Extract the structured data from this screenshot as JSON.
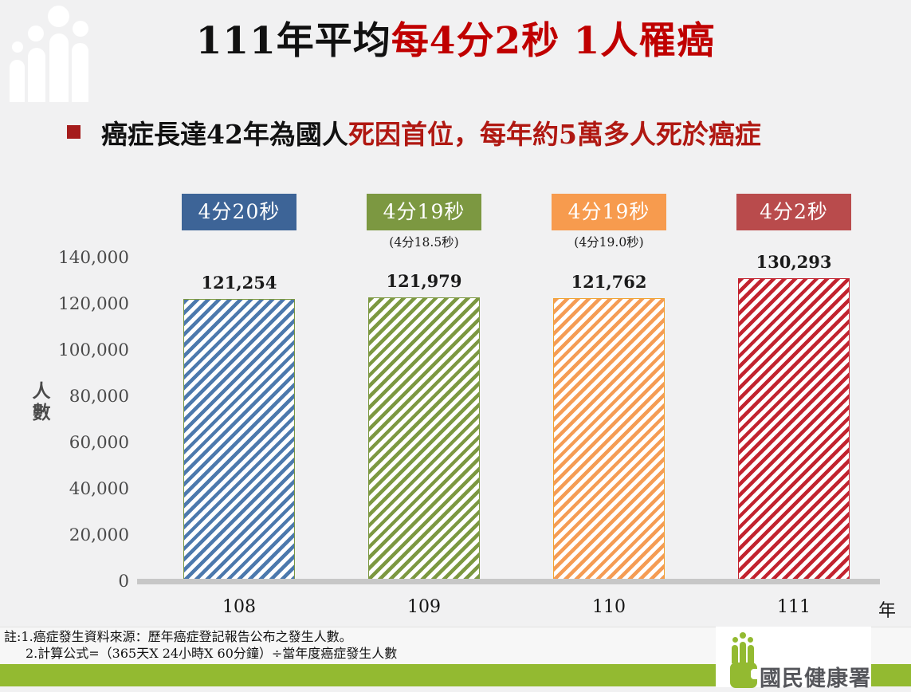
{
  "page": {
    "background": "#F1F1F2"
  },
  "header": {
    "title_black": "111年平均",
    "title_red": "每4分2秒 1人罹癌",
    "title_red_color": "#C00000"
  },
  "subtitle": {
    "text_black": "癌症長達42年為國人",
    "text_red": "死因首位，每年約5萬多人死於癌症",
    "red_color": "#B01812",
    "bullet_color": "#A51C1C"
  },
  "chart_data": {
    "type": "bar",
    "title": "111年平均每4分2秒 1人罹癌",
    "xlabel": "年",
    "ylabel": "人數",
    "ylim": [
      0,
      140000
    ],
    "grid": false,
    "legend": "none",
    "yticks": [
      {
        "value": 140000,
        "label": "140,000"
      },
      {
        "value": 120000,
        "label": "120,000"
      },
      {
        "value": 100000,
        "label": "100,000"
      },
      {
        "value": 80000,
        "label": "80,000"
      },
      {
        "value": 60000,
        "label": "60,000"
      },
      {
        "value": 40000,
        "label": "40,000"
      },
      {
        "value": 20000,
        "label": "20,000"
      },
      {
        "value": 0,
        "label": "0"
      }
    ],
    "categories": [
      "108",
      "109",
      "110",
      "111"
    ],
    "series": [
      {
        "year": "108",
        "value": 121254,
        "value_label": "121,254",
        "tag": "4分20秒",
        "tag_sub": "",
        "tag_color": "#3D6497",
        "stripe_color": "#4C79AD",
        "border_color": "#7C9841"
      },
      {
        "year": "109",
        "value": 121979,
        "value_label": "121,979",
        "tag": "4分19秒",
        "tag_sub": "(4分18.5秒)",
        "tag_color": "#7C9841",
        "stripe_color": "#7C9841",
        "border_color": "#7C9841"
      },
      {
        "year": "110",
        "value": 121762,
        "value_label": "121,762",
        "tag": "4分19秒",
        "tag_sub": "(4分19.0秒)",
        "tag_color": "#F79B4E",
        "stripe_color": "#F59C54",
        "border_color": "#F0A332"
      },
      {
        "year": "111",
        "value": 130293,
        "value_label": "130,293",
        "tag": "4分2秒",
        "tag_sub": "",
        "tag_color": "#B94B4C",
        "stripe_color": "#C2232F",
        "border_color": "#C2232F"
      }
    ]
  },
  "notes": {
    "line1": "註:1.癌症發生資料來源：歷年癌症登記報告公布之發生人數。",
    "line2": "2.計算公式=（365天X 24小時X 60分鐘）÷當年度癌症發生人數"
  },
  "footer": {
    "agency_name": "國民健康署",
    "bar_color": "#93BA31",
    "text_color": "#55565B"
  }
}
